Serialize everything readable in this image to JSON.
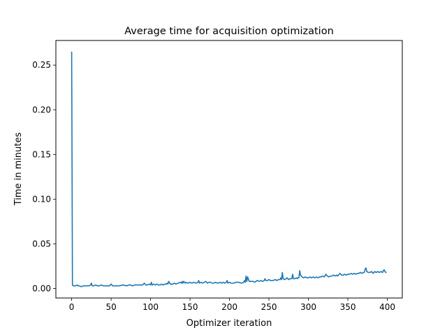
{
  "chart_data": {
    "type": "line",
    "title": "Average time for acquisition optimization",
    "xlabel": "Optimizer iteration",
    "ylabel": "Time in minutes",
    "xlim": [
      -20,
      419
    ],
    "ylim": [
      -0.0106,
      0.2775
    ],
    "xticks": [
      0,
      50,
      100,
      150,
      200,
      250,
      300,
      350,
      400
    ],
    "yticks": [
      0.0,
      0.05,
      0.1,
      0.15,
      0.2,
      0.25
    ],
    "ytick_labels": [
      "0.00",
      "0.05",
      "0.10",
      "0.15",
      "0.20",
      "0.25"
    ],
    "grid": false,
    "line_color": "#1f77b4",
    "series": [
      {
        "x": [
          0,
          1,
          2,
          3,
          5,
          7,
          8,
          10,
          12,
          15,
          18,
          20,
          22,
          24,
          25,
          26,
          28,
          30,
          33,
          35,
          38,
          40,
          45,
          48,
          50,
          52,
          55,
          60,
          65,
          70,
          72,
          75,
          77,
          80,
          85,
          90,
          92,
          94,
          96,
          98,
          100,
          101,
          102,
          104,
          106,
          108,
          110,
          112,
          114,
          116,
          118,
          120,
          121,
          122,
          123,
          125,
          128,
          130,
          132,
          135,
          137,
          139,
          140,
          141,
          142,
          144,
          145,
          147,
          150,
          152,
          155,
          158,
          160,
          161,
          162,
          164,
          166,
          168,
          170,
          172,
          174,
          176,
          178,
          180,
          182,
          185,
          188,
          190,
          192,
          194,
          196,
          197,
          198,
          200,
          202,
          205,
          208,
          210,
          212,
          215,
          218,
          219,
          220,
          221,
          222,
          223,
          225,
          228,
          230,
          232,
          235,
          238,
          240,
          242,
          244,
          245,
          246,
          248,
          250,
          252,
          255,
          258,
          260,
          262,
          264,
          265,
          266,
          267,
          268,
          270,
          272,
          273,
          275,
          277,
          279,
          280,
          281,
          283,
          285,
          286,
          287,
          288,
          289,
          290,
          292,
          294,
          296,
          298,
          300,
          302,
          304,
          306,
          308,
          310,
          312,
          314,
          316,
          318,
          320,
          321,
          322,
          324,
          326,
          328,
          330,
          332,
          334,
          336,
          337,
          338,
          340,
          342,
          344,
          346,
          348,
          350,
          352,
          354,
          356,
          358,
          360,
          362,
          364,
          366,
          368,
          370,
          371,
          372,
          373,
          374,
          376,
          378,
          380,
          382,
          384,
          386,
          388,
          390,
          392,
          394,
          395,
          396,
          397,
          398,
          399
        ],
        "y": [
          0.265,
          0.004,
          0.003,
          0.003,
          0.003,
          0.004,
          0.003,
          0.003,
          0.002,
          0.003,
          0.003,
          0.003,
          0.003,
          0.004,
          0.006,
          0.003,
          0.003,
          0.004,
          0.003,
          0.003,
          0.004,
          0.003,
          0.003,
          0.003,
          0.005,
          0.003,
          0.003,
          0.003,
          0.004,
          0.003,
          0.004,
          0.004,
          0.003,
          0.004,
          0.004,
          0.004,
          0.006,
          0.004,
          0.004,
          0.005,
          0.004,
          0.007,
          0.004,
          0.005,
          0.004,
          0.005,
          0.004,
          0.004,
          0.005,
          0.004,
          0.005,
          0.005,
          0.006,
          0.005,
          0.008,
          0.005,
          0.005,
          0.006,
          0.005,
          0.006,
          0.007,
          0.006,
          0.008,
          0.006,
          0.008,
          0.006,
          0.007,
          0.006,
          0.007,
          0.006,
          0.007,
          0.006,
          0.007,
          0.009,
          0.006,
          0.007,
          0.006,
          0.007,
          0.008,
          0.006,
          0.007,
          0.007,
          0.006,
          0.006,
          0.007,
          0.006,
          0.007,
          0.006,
          0.007,
          0.006,
          0.007,
          0.009,
          0.006,
          0.007,
          0.006,
          0.006,
          0.007,
          0.007,
          0.007,
          0.006,
          0.007,
          0.009,
          0.007,
          0.014,
          0.008,
          0.013,
          0.008,
          0.008,
          0.008,
          0.007,
          0.009,
          0.008,
          0.009,
          0.008,
          0.009,
          0.011,
          0.009,
          0.009,
          0.01,
          0.009,
          0.009,
          0.01,
          0.009,
          0.01,
          0.01,
          0.012,
          0.01,
          0.018,
          0.011,
          0.01,
          0.011,
          0.012,
          0.01,
          0.011,
          0.011,
          0.016,
          0.011,
          0.011,
          0.012,
          0.011,
          0.012,
          0.012,
          0.02,
          0.015,
          0.013,
          0.012,
          0.013,
          0.012,
          0.012,
          0.013,
          0.012,
          0.013,
          0.012,
          0.013,
          0.012,
          0.013,
          0.013,
          0.014,
          0.013,
          0.014,
          0.016,
          0.014,
          0.013,
          0.014,
          0.014,
          0.015,
          0.014,
          0.015,
          0.014,
          0.015,
          0.017,
          0.015,
          0.015,
          0.016,
          0.015,
          0.016,
          0.016,
          0.017,
          0.016,
          0.017,
          0.016,
          0.017,
          0.017,
          0.018,
          0.017,
          0.018,
          0.018,
          0.022,
          0.023,
          0.019,
          0.018,
          0.018,
          0.019,
          0.017,
          0.019,
          0.018,
          0.019,
          0.018,
          0.019,
          0.018,
          0.02,
          0.021,
          0.019,
          0.018,
          0.018
        ]
      }
    ]
  }
}
